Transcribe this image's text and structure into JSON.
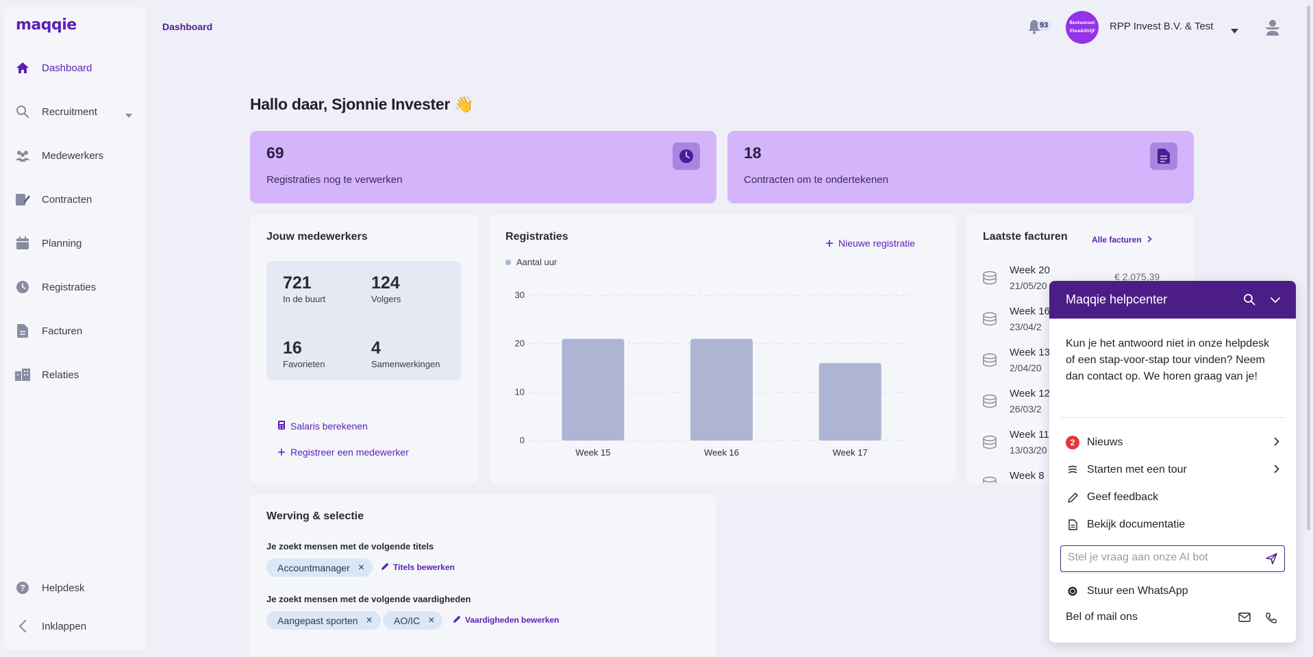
{
  "app": {
    "logo": "maqqie",
    "brand_color": "#5b21b6",
    "accent_card_color": "#d4b4fb"
  },
  "header": {
    "breadcrumb": "Dashboard",
    "notification_count": "93",
    "company_avatar_line1": "Restaurant",
    "company_avatar_line2": "Eten&Drijf",
    "company_name": "RPP Invest B.V. & Test"
  },
  "sidebar": {
    "items": [
      {
        "label": "Dashboard",
        "icon": "home-icon"
      },
      {
        "label": "Recruitment",
        "icon": "search-icon"
      },
      {
        "label": "Medewerkers",
        "icon": "users-icon"
      },
      {
        "label": "Contracten",
        "icon": "contract-icon"
      },
      {
        "label": "Planning",
        "icon": "calendar-icon"
      },
      {
        "label": "Registraties",
        "icon": "clock-icon"
      },
      {
        "label": "Facturen",
        "icon": "document-icon"
      },
      {
        "label": "Relaties",
        "icon": "building-icon"
      }
    ],
    "helpdesk_label": "Helpdesk",
    "collapse_label": "Inklappen"
  },
  "main": {
    "greeting": "Hallo daar, Sjonnie Invester 👋",
    "stats": [
      {
        "value": "69",
        "label": "Registraties nog te verwerken"
      },
      {
        "value": "18",
        "label": "Contracten om te ondertekenen"
      }
    ],
    "employees": {
      "title": "Jouw medewerkers",
      "stats": [
        {
          "value": "721",
          "label": "In de buurt"
        },
        {
          "value": "124",
          "label": "Volgers"
        },
        {
          "value": "16",
          "label": "Favorieten"
        },
        {
          "value": "4",
          "label": "Samenwerkingen"
        }
      ],
      "salary_link": "Salaris berekenen",
      "register_link": "Registreer een medewerker"
    },
    "registrations": {
      "title": "Registraties",
      "new_link": "Nieuwe registratie"
    },
    "invoices": {
      "title": "Laatste facturen",
      "all_link": "Alle facturen",
      "rows": [
        {
          "week": "Week 20",
          "date": "21/05/20",
          "amount": "€ 2.075,39"
        },
        {
          "week": "Week 16",
          "date": "23/04/2"
        },
        {
          "week": "Week 13",
          "date": "2/04/20"
        },
        {
          "week": "Week 12",
          "date": "26/03/2"
        },
        {
          "week": "Week 11",
          "date": "13/03/20"
        },
        {
          "week": "Week 8",
          "date": ""
        }
      ]
    },
    "recruitment": {
      "title": "Werving & selectie",
      "titles_label": "Je zoekt mensen met de volgende titels",
      "titles": [
        "Accountmanager"
      ],
      "titles_edit": "Titels bewerken",
      "skills_label": "Je zoekt mensen met de volgende vaardigheden",
      "skills": [
        "Aangepast sporten",
        "AO/IC"
      ],
      "skills_edit": "Vaardigheden bewerken"
    }
  },
  "chart_data": {
    "type": "bar",
    "categories": [
      "Week 15",
      "Week 16",
      "Week 17"
    ],
    "series": [
      {
        "name": "Aantal uur",
        "values": [
          21,
          21,
          16
        ],
        "color": "#aeb4d4"
      }
    ],
    "yticks": [
      0,
      10,
      20,
      30
    ],
    "ylim": [
      0,
      30
    ],
    "grid": true,
    "legend": "top-left"
  },
  "helpcenter": {
    "title": "Maqqie helpcenter",
    "message": "Kun je het antwoord niet in onze helpdesk of een stap-voor-stap tour vinden? Neem dan contact op. We horen graag van je!",
    "news_count": "2",
    "items": [
      "Nieuws",
      "Starten met een tour",
      "Geef feedback",
      "Bekijk documentatie"
    ],
    "input_placeholder": "Stel je vraag aan onze AI bot",
    "whatsapp": "Stuur een WhatsApp",
    "contact": "Bel of mail ons"
  }
}
